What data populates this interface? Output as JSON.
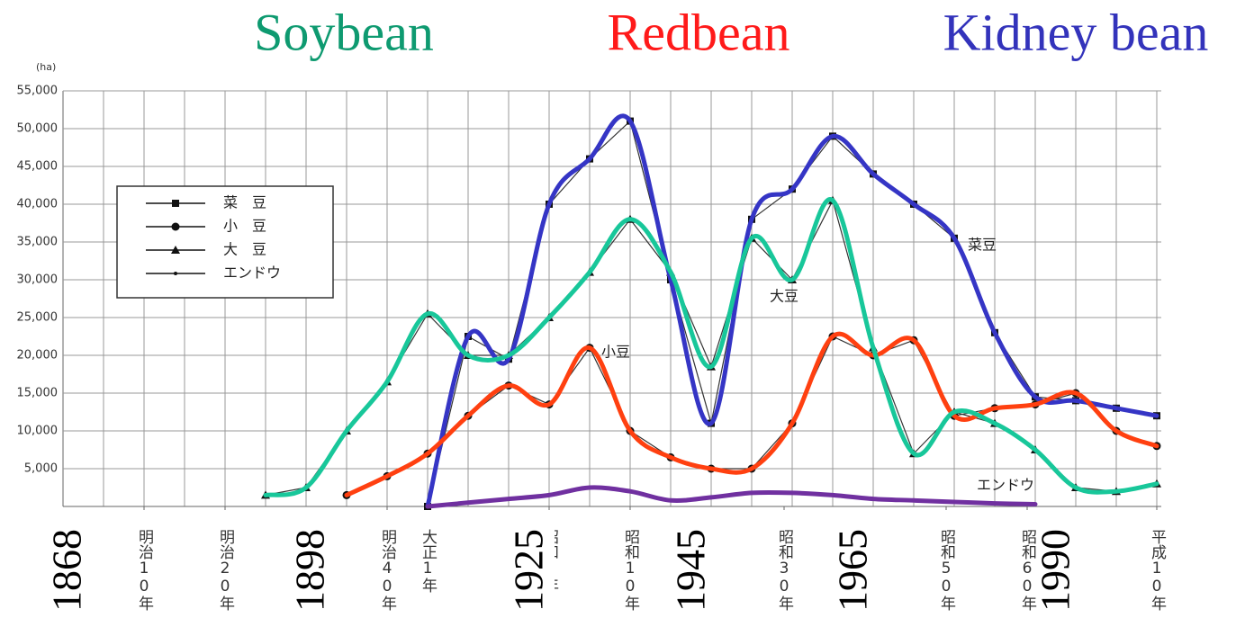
{
  "chart_data": {
    "type": "line",
    "headings": [
      {
        "text": "Soybean",
        "color": "#0e9a70"
      },
      {
        "text": "Redbean",
        "color": "#ff1a1a"
      },
      {
        "text": "Kidney bean",
        "color": "#3333bb"
      }
    ],
    "y_unit": "(ha)",
    "ylim": [
      0,
      55000
    ],
    "yticks": [
      {
        "value": 5000,
        "label": "5,000"
      },
      {
        "value": 10000,
        "label": "10,000"
      },
      {
        "value": 15000,
        "label": "15,000"
      },
      {
        "value": 20000,
        "label": "20,000"
      },
      {
        "value": 25000,
        "label": "25,000"
      },
      {
        "value": 30000,
        "label": "30,000"
      },
      {
        "value": 35000,
        "label": "35,000"
      },
      {
        "value": 40000,
        "label": "40,000"
      },
      {
        "value": 45000,
        "label": "45,000"
      },
      {
        "value": 50000,
        "label": "50,000"
      },
      {
        "value": 55000,
        "label": "55,000"
      }
    ],
    "xlim": [
      1867,
      2004
    ],
    "xticks": [
      {
        "value": 1877,
        "label": "明治10年"
      },
      {
        "value": 1887,
        "label": "明治20年"
      },
      {
        "value": 1907,
        "label": "明治40年"
      },
      {
        "value": 1912,
        "label": "大正1年"
      },
      {
        "value": 1927,
        "label": "昭和1年"
      },
      {
        "value": 1937,
        "label": "昭和10年"
      },
      {
        "value": 1956,
        "label": "昭和30年"
      },
      {
        "value": 1976,
        "label": "昭和50年"
      },
      {
        "value": 1986,
        "label": "昭和60年"
      },
      {
        "value": 2002,
        "label": "平成10年"
      }
    ],
    "year_marks": [
      1868,
      1898,
      1925,
      1945,
      1965,
      1990
    ],
    "grid": true,
    "series": [
      {
        "name": "菜　豆",
        "marker": "square",
        "color": "#3535c5",
        "x": [
          1912,
          1917,
          1922,
          1927,
          1932,
          1937,
          1942,
          1947,
          1952,
          1957,
          1962,
          1967,
          1972,
          1977,
          1982,
          1987,
          1992,
          1997,
          2002
        ],
        "values": [
          0,
          22500,
          19500,
          40000,
          46000,
          51000,
          30000,
          11000,
          38000,
          42000,
          49000,
          44000,
          40000,
          35500,
          23000,
          14500,
          14000,
          13000,
          12000
        ]
      },
      {
        "name": "小　豆",
        "marker": "circle",
        "color": "#ff4010",
        "x": [
          1902,
          1907,
          1912,
          1917,
          1922,
          1927,
          1932,
          1937,
          1942,
          1947,
          1952,
          1957,
          1962,
          1967,
          1972,
          1977,
          1982,
          1987,
          1992,
          1997,
          2002
        ],
        "values": [
          1500,
          4000,
          7000,
          12000,
          16000,
          13500,
          21000,
          10000,
          6500,
          5000,
          5000,
          11000,
          22500,
          20000,
          22000,
          12000,
          13000,
          13500,
          15000,
          10000,
          8000
        ]
      },
      {
        "name": "大　豆",
        "marker": "triangle",
        "color": "#18c79a",
        "x": [
          1892,
          1897,
          1902,
          1907,
          1912,
          1917,
          1922,
          1927,
          1932,
          1937,
          1942,
          1947,
          1952,
          1957,
          1962,
          1967,
          1972,
          1977,
          1982,
          1987,
          1992,
          1997,
          2002
        ],
        "values": [
          1500,
          2500,
          10000,
          16500,
          25500,
          20000,
          20000,
          25000,
          31000,
          38000,
          31000,
          18500,
          35500,
          30000,
          40500,
          21000,
          7000,
          12500,
          11000,
          7500,
          2500,
          2000,
          3000
        ]
      },
      {
        "name": "エンドウ",
        "marker": "dot",
        "color": "#7030a0",
        "x": [
          1912,
          1917,
          1922,
          1927,
          1932,
          1937,
          1942,
          1947,
          1952,
          1957,
          1962,
          1967,
          1972,
          1977,
          1982,
          1987
        ],
        "values": [
          0,
          500,
          1000,
          1500,
          2500,
          2000,
          800,
          1200,
          1800,
          1800,
          1500,
          1000,
          800,
          600,
          400,
          300
        ]
      }
    ],
    "annotations": [
      {
        "text": "菜豆",
        "series": 0
      },
      {
        "text": "小豆",
        "series": 1
      },
      {
        "text": "大豆",
        "series": 2
      },
      {
        "text": "エンドウ",
        "series": 3
      }
    ]
  }
}
